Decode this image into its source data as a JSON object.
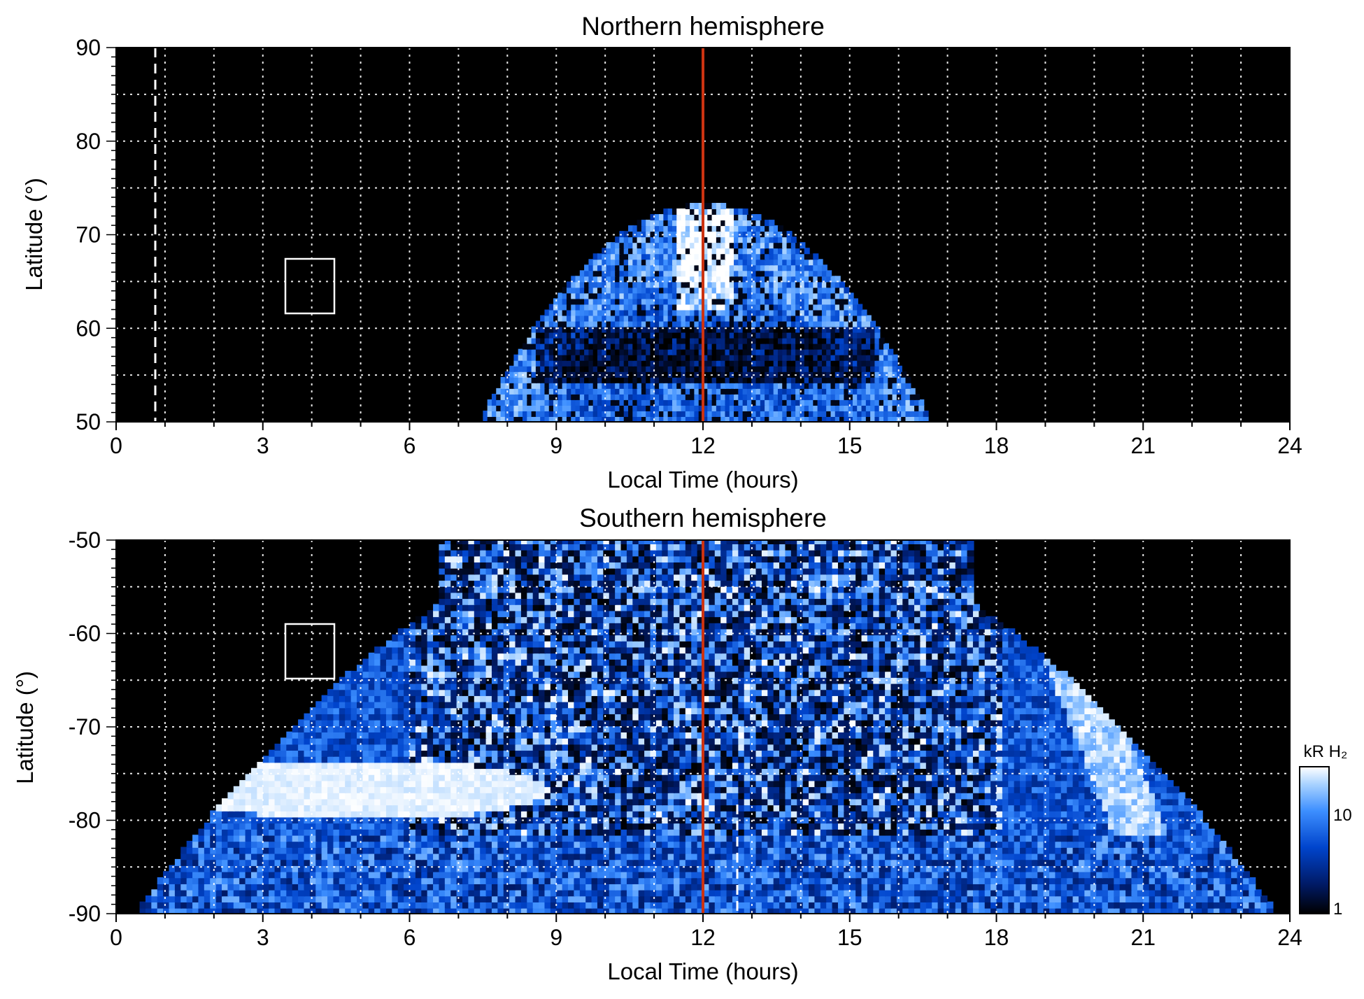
{
  "chart_data": [
    {
      "type": "heatmap",
      "title": "Northern hemisphere",
      "xlabel": "Local Time (hours)",
      "ylabel": "Latitude (°)",
      "xlim": [
        0,
        24
      ],
      "ylim": [
        50,
        90
      ],
      "xticks": [
        "0",
        "3",
        "6",
        "9",
        "12",
        "15",
        "18",
        "21",
        "24"
      ],
      "yticks": [
        "50",
        "60",
        "70",
        "80",
        "90"
      ],
      "grid": true,
      "noon_line_lt": 12,
      "dashed_line_lt": 0.8,
      "box": {
        "lt": [
          3.5,
          4.5
        ],
        "lat": [
          61.5,
          67.5
        ]
      },
      "emission_region": {
        "lt_range": [
          7.5,
          16.5
        ],
        "lat_min": 50,
        "lat_max": 73.5,
        "noon_peak_lat": 73
      },
      "colors": {
        "noon_line": "#cc3311",
        "background": "#000000",
        "grid": "#ffffff"
      }
    },
    {
      "type": "heatmap",
      "title": "Southern hemisphere",
      "xlabel": "Local Time (hours)",
      "ylabel": "Latitude (°)",
      "xlim": [
        0,
        24
      ],
      "ylim": [
        -90,
        -50
      ],
      "xticks": [
        "0",
        "3",
        "6",
        "9",
        "12",
        "15",
        "18",
        "21",
        "24"
      ],
      "yticks": [
        "-90",
        "-80",
        "-70",
        "-60",
        "-50"
      ],
      "grid": true,
      "noon_line_lt": 12,
      "dashed_line_lt": 12.7,
      "box": {
        "lt": [
          3.5,
          4.5
        ],
        "lat": [
          -65,
          -59
        ]
      },
      "bright_oval": {
        "lt_range": [
          1.5,
          10
        ],
        "lat_center": -77
      },
      "dusk_arc": {
        "lt_range": [
          18,
          21
        ],
        "lat_top": -50,
        "lat_bottom": -90
      },
      "colors": {
        "noon_line": "#cc3311",
        "background": "#000000",
        "grid": "#ffffff"
      }
    }
  ],
  "colorbar": {
    "label": "kR H₂",
    "scale": "log",
    "ticks": [
      "1",
      "10"
    ],
    "range": [
      1,
      30
    ],
    "colors": [
      "#000000",
      "#001a66",
      "#0044cc",
      "#3d8fff",
      "#a8d2ff",
      "#ffffff"
    ]
  }
}
